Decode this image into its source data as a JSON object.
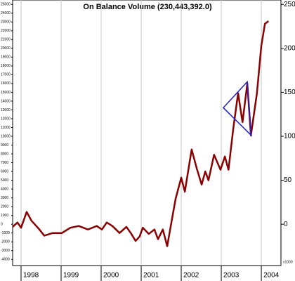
{
  "chart_data": {
    "type": "line",
    "title": "On Balance Volume (230,443,392.0)",
    "y_unit_label": "x1000",
    "x": [
      1997.79,
      1997.91,
      1998.0,
      1998.14,
      1998.26,
      1998.44,
      1998.58,
      1998.79,
      1999.02,
      1999.23,
      1999.44,
      1999.67,
      1999.89,
      2000.02,
      2000.14,
      2000.28,
      2000.46,
      2000.63,
      2000.74,
      2000.86,
      2000.96,
      2001.04,
      2001.19,
      2001.33,
      2001.42,
      2001.54,
      2001.65,
      2001.75,
      2001.86,
      2002.0,
      2002.09,
      2002.26,
      2002.39,
      2002.51,
      2002.6,
      2002.68,
      2002.82,
      2002.98,
      2003.09,
      2003.18,
      2003.3,
      2003.42,
      2003.53,
      2003.65,
      2003.74,
      2003.89,
      2004.0,
      2004.09,
      2004.18
    ],
    "series": [
      {
        "color": "#8b0000",
        "values": [
          -3,
          2,
          -4,
          14,
          4,
          -5,
          -13,
          -10,
          -10,
          -4,
          -2,
          -6,
          -2,
          -6,
          2,
          -2,
          -10,
          -3,
          -10,
          -19,
          -14,
          -4,
          -11,
          -6,
          -17,
          -6,
          -25,
          1,
          29,
          53,
          37,
          85,
          63,
          45,
          60,
          50,
          79,
          62,
          77,
          62,
          109,
          149,
          116,
          160,
          101,
          149,
          203,
          228,
          231
        ]
      }
    ],
    "triangle": {
      "color": "#1f1fd0",
      "x": [
        2003.05,
        2003.65,
        2003.75
      ],
      "y": [
        132.5,
        162,
        101
      ]
    },
    "xlim": [
      1997.79,
      2004.49
    ],
    "xticks": [
      1998,
      1999,
      2000,
      2001,
      2002,
      2003,
      2004
    ],
    "ylim": [
      -47,
      255
    ],
    "yticks": [
      0,
      50,
      100,
      150,
      200,
      250
    ],
    "y2lim": [
      -4700,
      25500
    ],
    "y2ticks": [
      -4000,
      -3000,
      -2000,
      -1000,
      0,
      1000,
      2000,
      3000,
      4000,
      5000,
      6000,
      7000,
      8000,
      9000,
      10000,
      11000,
      12000,
      13000,
      14000,
      15000,
      16000,
      17000,
      18000,
      19000,
      20000,
      21000,
      22000,
      23000,
      24000,
      25000
    ],
    "grid": true
  }
}
